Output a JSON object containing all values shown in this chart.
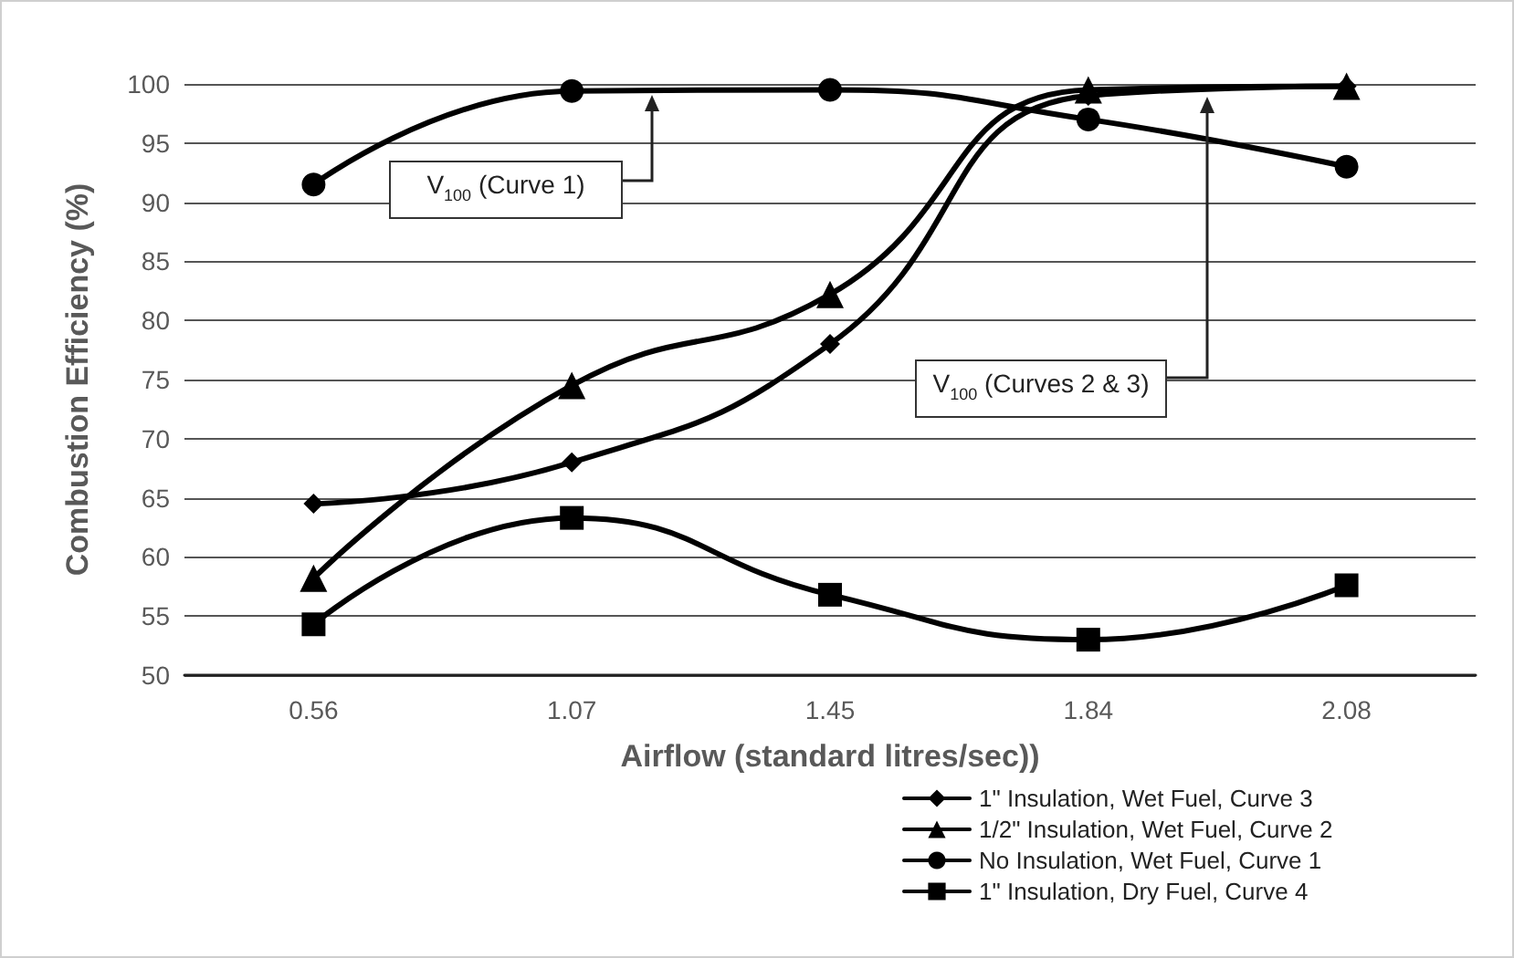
{
  "chart_data": {
    "type": "line",
    "xlabel": "Airflow (standard litres/sec))",
    "ylabel": "Combustion Efficiency (%)",
    "categories": [
      "0.56",
      "1.07",
      "1.45",
      "1.84",
      "2.08"
    ],
    "ylim": [
      50,
      100
    ],
    "yticks": [
      50,
      55,
      60,
      65,
      70,
      75,
      80,
      85,
      90,
      95,
      100
    ],
    "grid": "y",
    "legend": "bottom right",
    "series": [
      {
        "name": "1\" Insulation, Wet Fuel, Curve 3",
        "color": "#000000",
        "marker": "diamond",
        "values": [
          64.5,
          68,
          78,
          99,
          99.8
        ]
      },
      {
        "name": "1/2\" Insulation, Wet Fuel, Curve 2",
        "color": "#000000",
        "marker": "triangle",
        "values": [
          58.2,
          74.5,
          82.2,
          99.5,
          99.8
        ]
      },
      {
        "name": "No Insulation, Wet Fuel, Curve 1",
        "color": "#000000",
        "marker": "circle",
        "values": [
          91.5,
          99.4,
          99.5,
          97,
          93
        ]
      },
      {
        "name": "1\" Insulation, Dry Fuel, Curve 4",
        "color": "#000000",
        "marker": "square",
        "values": [
          54.3,
          63.3,
          56.8,
          53,
          57.6
        ]
      }
    ],
    "annotations": [
      "V$_{100}$ (Curve 1)",
      "V$_{100}$ (Curves 2 & 3)"
    ]
  }
}
